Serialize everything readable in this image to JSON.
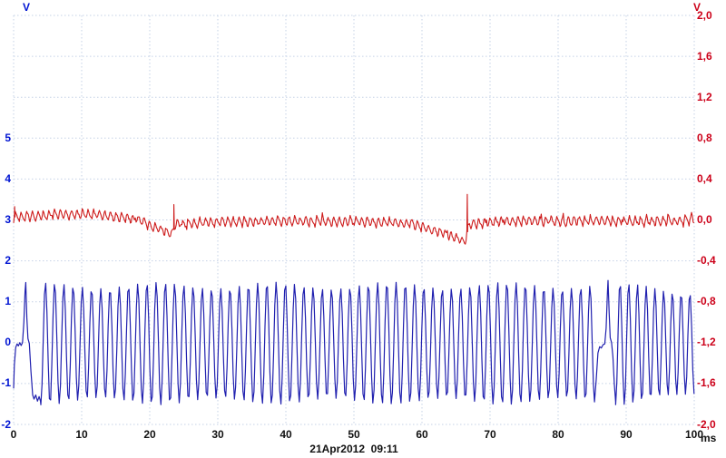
{
  "plot": {
    "timestamp": "21Apr2012  09:11",
    "timestamp_color": "#111111",
    "left_axis": {
      "unit": "V",
      "color": "#0014d2",
      "ticks": [
        {
          "label": "5",
          "v": 5
        },
        {
          "label": "4",
          "v": 4
        },
        {
          "label": "3",
          "v": 3
        },
        {
          "label": "2",
          "v": 2
        },
        {
          "label": "1",
          "v": 1
        },
        {
          "label": "0",
          "v": 0
        },
        {
          "label": "-1",
          "v": -1
        },
        {
          "label": "-2",
          "v": -2
        }
      ]
    },
    "right_axis": {
      "unit": "V",
      "color": "#cc0019",
      "ticks": [
        {
          "label": "2,0",
          "v": 2.0
        },
        {
          "label": "1,6",
          "v": 1.6
        },
        {
          "label": "1,2",
          "v": 1.2
        },
        {
          "label": "0,8",
          "v": 0.8
        },
        {
          "label": "0,4",
          "v": 0.4
        },
        {
          "label": "0,0",
          "v": 0.0
        },
        {
          "label": "-0,4",
          "v": -0.4
        },
        {
          "label": "-0,8",
          "v": -0.8
        },
        {
          "label": "-1,2",
          "v": -1.2
        },
        {
          "label": "-1,6",
          "v": -1.6
        },
        {
          "label": "-2,0",
          "v": -2.0
        }
      ]
    },
    "x_axis": {
      "unit": "ms",
      "color": "#111111",
      "ticks": [
        {
          "label": "0",
          "v": 0
        },
        {
          "label": "10",
          "v": 10
        },
        {
          "label": "20",
          "v": 20
        },
        {
          "label": "30",
          "v": 30
        },
        {
          "label": "40",
          "v": 40
        },
        {
          "label": "50",
          "v": 50
        },
        {
          "label": "60",
          "v": 60
        },
        {
          "label": "70",
          "v": 70
        },
        {
          "label": "80",
          "v": 80
        },
        {
          "label": "90",
          "v": 90
        },
        {
          "label": "100",
          "v": 100
        }
      ]
    }
  },
  "chart_data": {
    "type": "line",
    "title": "",
    "annotation": "21Apr2012  09:11",
    "x": {
      "label": "ms",
      "min": 0,
      "max": 100,
      "grid_step_ms": 10
    },
    "y_left": {
      "label": "V",
      "top_value": 8,
      "bottom_value": -2,
      "grid_step": 1,
      "labeled_ticks": [
        5,
        4,
        3,
        2,
        1,
        0,
        -1,
        -2
      ]
    },
    "y_right": {
      "label": "V",
      "top_value": 2.0,
      "bottom_value": -2.0,
      "grid_step": 0.4
    },
    "grid": {
      "on": true,
      "style": "dashed",
      "color": "#c5d2e6"
    },
    "legend": "none",
    "series": [
      {
        "name": "red-trace",
        "axis": "right",
        "color": "#cd1a1a",
        "kind": "noisy-baseline-with-sags-and-spikes",
        "baseline_points_ms_v": [
          [
            0,
            0.03
          ],
          [
            4,
            0.03
          ],
          [
            8,
            0.05
          ],
          [
            12,
            0.045
          ],
          [
            16,
            0.02
          ],
          [
            18.5,
            0.0
          ],
          [
            20,
            -0.06
          ],
          [
            22,
            -0.11
          ],
          [
            23.3,
            -0.14
          ],
          [
            23.75,
            -0.05
          ],
          [
            25,
            -0.05
          ],
          [
            28,
            -0.03
          ],
          [
            32,
            -0.025
          ],
          [
            36,
            -0.02
          ],
          [
            40,
            -0.015
          ],
          [
            44,
            -0.02
          ],
          [
            48,
            -0.02
          ],
          [
            52,
            -0.025
          ],
          [
            56,
            -0.03
          ],
          [
            58.5,
            -0.05
          ],
          [
            60.5,
            -0.08
          ],
          [
            62.5,
            -0.12
          ],
          [
            64.5,
            -0.17
          ],
          [
            66.3,
            -0.22
          ],
          [
            66.9,
            -0.04
          ],
          [
            68,
            -0.04
          ],
          [
            71,
            -0.02
          ],
          [
            75,
            -0.015
          ],
          [
            80,
            -0.02
          ],
          [
            85,
            -0.01
          ],
          [
            90,
            -0.02
          ],
          [
            95,
            -0.015
          ],
          [
            100,
            -0.01
          ]
        ],
        "ripple": {
          "period_ms": 0.82,
          "rise_fraction": 0.3,
          "amplitude_v": 0.1,
          "center_offset": -0.45
        },
        "noise": {
          "amplitude_v": 0.03,
          "spike_probability": 0.05,
          "spike_v": 0.05,
          "seed": 7
        },
        "spikes_ms_v": [
          [
            0.15,
            0.13
          ],
          [
            23.55,
            0.15
          ],
          [
            66.65,
            0.25
          ]
        ]
      },
      {
        "name": "blue-trace",
        "axis": "left",
        "color": "#2020af",
        "kind": "sine-with-dropouts",
        "period_ms": 1.356,
        "frequency_hz": 737,
        "amplitude_v": 1.42,
        "offset_v": -0.02,
        "am_depth_v": 0.08,
        "am_rate": 0.37,
        "end_taper_start_ms": 90,
        "end_taper_v_per_ms": 0.012,
        "sample_step_ms": 0.18,
        "dropouts": [
          {
            "start_ms": 0,
            "end_ms": 4.0,
            "shape_ms_v": [
              [
                0,
                -1.12
              ],
              [
                0.1,
                -0.55
              ],
              [
                0.3,
                -0.12
              ],
              [
                0.5,
                -0.03
              ],
              [
                0.7,
                -0.08
              ],
              [
                0.9,
                0.0
              ],
              [
                1.1,
                -0.07
              ],
              [
                1.3,
                0.0
              ],
              [
                1.5,
                0.5
              ],
              [
                1.68,
                1.25
              ],
              [
                1.78,
                1.47
              ],
              [
                1.95,
                0.6
              ],
              [
                2.1,
                0.1
              ],
              [
                2.3,
                -0.02
              ],
              [
                2.55,
                -0.7
              ],
              [
                2.8,
                -1.28
              ],
              [
                3.0,
                -1.38
              ],
              [
                3.25,
                -1.28
              ],
              [
                3.5,
                -1.43
              ],
              [
                3.75,
                -1.32
              ],
              [
                3.95,
                -1.43
              ]
            ]
          },
          {
            "start_ms": 85.35,
            "end_ms": 88.45,
            "shape_ms_v": [
              [
                85.35,
                -1.45
              ],
              [
                85.6,
                -0.9
              ],
              [
                85.85,
                -0.25
              ],
              [
                86.1,
                -0.1
              ],
              [
                86.35,
                -0.13
              ],
              [
                86.6,
                -0.05
              ],
              [
                86.85,
                -0.03
              ],
              [
                87.05,
                0.35
              ],
              [
                87.25,
                1.25
              ],
              [
                87.33,
                1.52
              ],
              [
                87.5,
                0.7
              ],
              [
                87.65,
                0.12
              ],
              [
                87.85,
                0.0
              ],
              [
                88.05,
                -0.35
              ],
              [
                88.25,
                -1.0
              ],
              [
                88.45,
                -1.45
              ]
            ]
          }
        ]
      }
    ]
  }
}
